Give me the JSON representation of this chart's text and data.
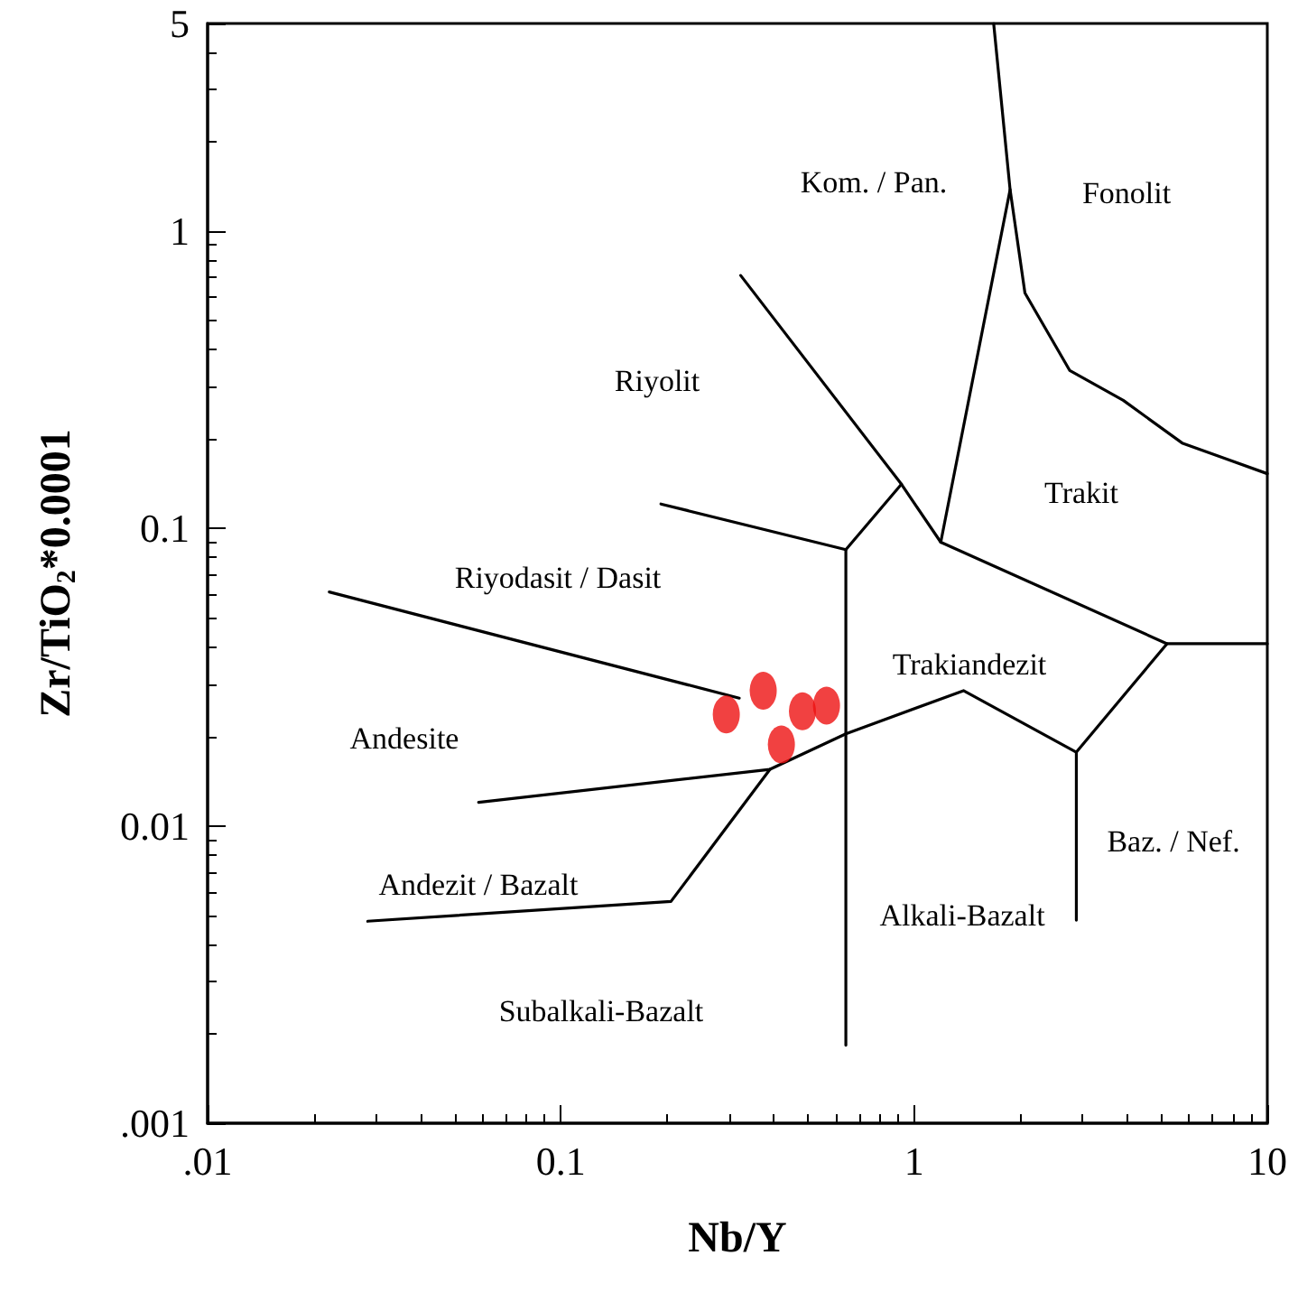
{
  "chart_data": {
    "type": "scatter",
    "xlabel": "Nb/Y",
    "ylabel": "Zr/TiO$_{2}$*0.0001",
    "log": "xy",
    "grid": false,
    "marker": "circle",
    "xlim": [
      0.01,
      10
    ],
    "xticks": [
      {
        "value": 0.01,
        "label": ".01"
      },
      0.1,
      1,
      10
    ],
    "ylim": [
      0.001,
      5
    ],
    "yticks": [
      {
        "value": 0.001,
        "label": ".001"
      },
      0.01,
      0.1,
      1,
      5
    ],
    "series": [
      {
        "color": "#ee1111",
        "x": [
          0.294,
          0.374,
          0.483,
          0.565,
          0.421
        ],
        "values": [
          0.0237,
          0.0285,
          0.0243,
          0.0254,
          0.0188
        ]
      },
      {
        "type": "line",
        "color": "#000000",
        "marker": "none",
        "x": [
          1.68,
          1.87,
          1.19
        ],
        "values": [
          5,
          1.38,
          0.09
        ]
      },
      {
        "type": "line",
        "color": "#000000",
        "marker": "none",
        "x": [
          1.87,
          2.06,
          2.76,
          3.91,
          5.74,
          10
        ],
        "values": [
          1.38,
          0.62,
          0.34,
          0.27,
          0.194,
          0.153
        ]
      },
      {
        "type": "line",
        "color": "#000000",
        "marker": "none",
        "x": [
          0.323,
          0.921,
          1.19,
          5.2,
          10
        ],
        "values": [
          0.71,
          0.141,
          0.09,
          0.041,
          0.041
        ]
      },
      {
        "type": "line",
        "color": "#000000",
        "marker": "none",
        "x": [
          0.921,
          0.641,
          0.192
        ],
        "values": [
          0.141,
          0.085,
          0.121
        ]
      },
      {
        "type": "line",
        "color": "#000000",
        "marker": "none",
        "x": [
          0.641,
          0.641
        ],
        "values": [
          0.085,
          0.00183
        ]
      },
      {
        "type": "line",
        "color": "#000000",
        "marker": "none",
        "x": [
          5.2,
          2.88,
          2.88
        ],
        "values": [
          0.041,
          0.0177,
          0.00482
        ]
      },
      {
        "type": "line",
        "color": "#000000",
        "marker": "none",
        "x": [
          2.88,
          1.38,
          0.641,
          0.391,
          0.0585
        ],
        "values": [
          0.0177,
          0.0285,
          0.0204,
          0.0155,
          0.012
        ]
      },
      {
        "type": "line",
        "color": "#000000",
        "marker": "none",
        "x": [
          0.391,
          0.205,
          0.0284
        ],
        "values": [
          0.0155,
          0.00557,
          0.00478
        ]
      },
      {
        "type": "line",
        "color": "#000000",
        "marker": "none",
        "x": [
          0.0221,
          0.32
        ],
        "values": [
          0.0612,
          0.0269
        ]
      }
    ],
    "annotations": [
      "Kom. / Pan.",
      "Fonolit",
      "Riyolit",
      "Trakit",
      "Riyodasit / Dasit",
      "Trakiandezit",
      "Andesite",
      "Baz. / Nef.",
      "Andezit / Bazalt",
      "Alkali-Bazalt",
      "Subalkali-Bazalt"
    ]
  }
}
